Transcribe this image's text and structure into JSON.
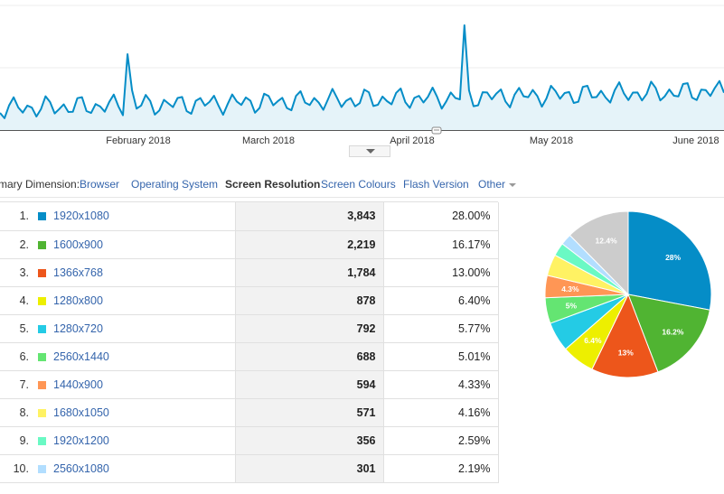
{
  "timeline": {
    "month_labels": [
      "February 2018",
      "March 2018",
      "April 2018",
      "May 2018",
      "June 2018"
    ],
    "line_color": "#058dc7",
    "fill_color": "#e5f3f9"
  },
  "dimension_bar": {
    "label": "mary Dimension:",
    "options": [
      {
        "label": "Browser",
        "active": false
      },
      {
        "label": "Operating System",
        "active": false
      },
      {
        "label": "Screen Resolution",
        "active": true
      },
      {
        "label": "Screen Colours",
        "active": false
      },
      {
        "label": "Flash Version",
        "active": false
      },
      {
        "label": "Other",
        "active": false,
        "dropdown": true
      }
    ]
  },
  "table": {
    "rows": [
      {
        "index": "1.",
        "resolution": "1920x1080",
        "sessions": "3,843",
        "percent": "28.00%",
        "color": "#058dc7"
      },
      {
        "index": "2.",
        "resolution": "1600x900",
        "sessions": "2,219",
        "percent": "16.17%",
        "color": "#50b432"
      },
      {
        "index": "3.",
        "resolution": "1366x768",
        "sessions": "1,784",
        "percent": "13.00%",
        "color": "#ed561b"
      },
      {
        "index": "4.",
        "resolution": "1280x800",
        "sessions": "878",
        "percent": "6.40%",
        "color": "#edef00"
      },
      {
        "index": "5.",
        "resolution": "1280x720",
        "sessions": "792",
        "percent": "5.77%",
        "color": "#24cbe5"
      },
      {
        "index": "6.",
        "resolution": "2560x1440",
        "sessions": "688",
        "percent": "5.01%",
        "color": "#64e572"
      },
      {
        "index": "7.",
        "resolution": "1440x900",
        "sessions": "594",
        "percent": "4.33%",
        "color": "#ff9655"
      },
      {
        "index": "8.",
        "resolution": "1680x1050",
        "sessions": "571",
        "percent": "4.16%",
        "color": "#fff263"
      },
      {
        "index": "9.",
        "resolution": "1920x1200",
        "sessions": "356",
        "percent": "2.59%",
        "color": "#6af9c4"
      },
      {
        "index": "10.",
        "resolution": "2560x1080",
        "sessions": "301",
        "percent": "2.19%",
        "color": "#b2deff"
      }
    ]
  },
  "pie": {
    "slices": [
      {
        "value": 28.0,
        "color": "#058dc7",
        "label": "28%"
      },
      {
        "value": 16.17,
        "color": "#50b432",
        "label": "16.2%"
      },
      {
        "value": 13.0,
        "color": "#ed561b",
        "label": "13%"
      },
      {
        "value": 6.4,
        "color": "#edef00",
        "label": "6.4%"
      },
      {
        "value": 5.77,
        "color": "#24cbe5",
        "label": ""
      },
      {
        "value": 5.01,
        "color": "#64e572",
        "label": "5%"
      },
      {
        "value": 4.33,
        "color": "#ff9655",
        "label": "4.3%"
      },
      {
        "value": 4.16,
        "color": "#fff263",
        "label": ""
      },
      {
        "value": 2.59,
        "color": "#6af9c4",
        "label": ""
      },
      {
        "value": 2.19,
        "color": "#b2deff",
        "label": ""
      },
      {
        "value": 12.38,
        "color": "#cccccc",
        "label": "12.4%"
      }
    ]
  }
}
